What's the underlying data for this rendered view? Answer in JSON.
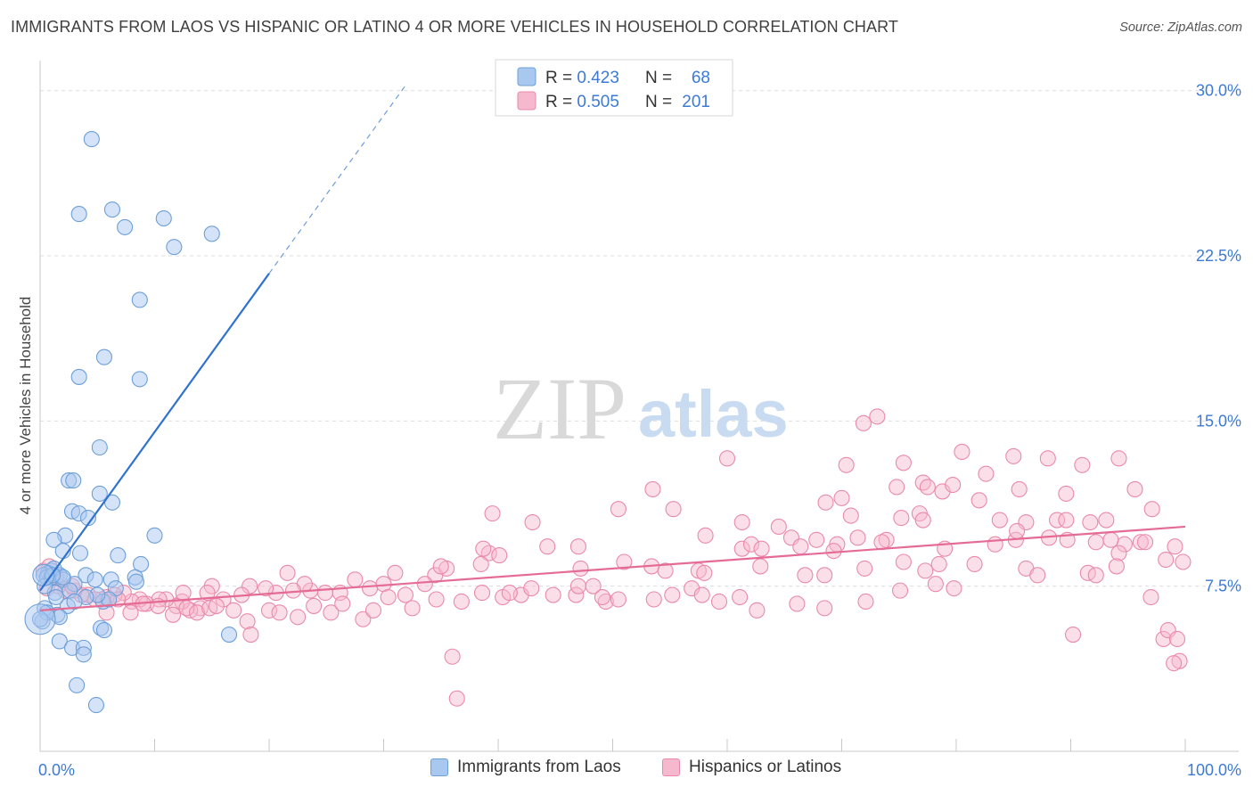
{
  "title": "IMMIGRANTS FROM LAOS VS HISPANIC OR LATINO 4 OR MORE VEHICLES IN HOUSEHOLD CORRELATION CHART",
  "source": "Source: ZipAtlas.com",
  "watermark": {
    "zip": "ZIP",
    "atlas": "atlas"
  },
  "colors": {
    "blue_fill": "#a9c8f0",
    "blue_stroke": "#6d9fd9",
    "blue_line": "#2f72cf",
    "pink_fill": "#f6b8cc",
    "pink_stroke": "#e98aa9",
    "pink_line": "#e56b97",
    "value_text": "#3d7ad6",
    "axis_tick_text": "#3d7ad6",
    "grid": "#dddddd"
  },
  "stats_legend": [
    {
      "r_label": "R = ",
      "r_value": "0.423",
      "n_label": "N = ",
      "n_value": "68"
    },
    {
      "r_label": "R = ",
      "r_value": "0.505",
      "n_label": "N = ",
      "n_value": "201"
    }
  ],
  "chart_data": {
    "type": "scatter",
    "title": "IMMIGRANTS FROM LAOS VS HISPANIC OR LATINO 4 OR MORE VEHICLES IN HOUSEHOLD CORRELATION CHART",
    "xlabel": "",
    "ylabel": "4 or more Vehicles in Household",
    "xlim": [
      0,
      100
    ],
    "ylim": [
      0,
      31
    ],
    "x_tick_labels": [
      "0.0%",
      "100.0%"
    ],
    "y_ticks": [
      7.5,
      15.0,
      22.5,
      30.0
    ],
    "y_tick_labels": [
      "7.5%",
      "15.0%",
      "22.5%",
      "30.0%"
    ],
    "grid": true,
    "legend_position": "bottom",
    "series": [
      {
        "name": "Immigrants from Laos",
        "r": 0.423,
        "n": 68,
        "trend": {
          "x0": 0,
          "y0": 7.3,
          "x1": 20,
          "y1": 21.7,
          "dash_to_x": 32,
          "dash_to_y": 30.3
        },
        "points": [
          [
            4.5,
            27.8
          ],
          [
            3.4,
            24.4
          ],
          [
            6.3,
            24.6
          ],
          [
            10.8,
            24.2
          ],
          [
            7.4,
            23.8
          ],
          [
            15.0,
            23.5
          ],
          [
            11.7,
            22.9
          ],
          [
            8.7,
            20.5
          ],
          [
            5.6,
            17.9
          ],
          [
            3.4,
            17.0
          ],
          [
            8.7,
            16.9
          ],
          [
            5.2,
            13.8
          ],
          [
            2.5,
            12.3
          ],
          [
            2.9,
            12.3
          ],
          [
            5.2,
            11.7
          ],
          [
            6.3,
            11.3
          ],
          [
            2.8,
            10.9
          ],
          [
            3.4,
            10.8
          ],
          [
            4.2,
            10.6
          ],
          [
            2.2,
            9.8
          ],
          [
            1.2,
            9.6
          ],
          [
            10.0,
            9.8
          ],
          [
            2.0,
            9.1
          ],
          [
            3.5,
            9.0
          ],
          [
            6.8,
            8.9
          ],
          [
            8.8,
            8.5
          ],
          [
            1.0,
            8.2
          ],
          [
            0.7,
            8.1
          ],
          [
            0.3,
            8.0
          ],
          [
            0.6,
            7.9
          ],
          [
            1.0,
            7.9
          ],
          [
            1.7,
            8.0
          ],
          [
            4.0,
            8.0
          ],
          [
            4.8,
            7.8
          ],
          [
            6.2,
            7.8
          ],
          [
            2.0,
            7.8
          ],
          [
            3.0,
            7.6
          ],
          [
            8.3,
            7.9
          ],
          [
            8.4,
            7.7
          ],
          [
            6.6,
            7.4
          ],
          [
            1.3,
            7.2
          ],
          [
            2.6,
            7.3
          ],
          [
            5.5,
            6.8
          ],
          [
            6.0,
            6.9
          ],
          [
            2.4,
            6.6
          ],
          [
            1.5,
            6.2
          ],
          [
            1.7,
            6.1
          ],
          [
            0.4,
            6.5
          ],
          [
            0.6,
            6.3
          ],
          [
            0.2,
            5.9
          ],
          [
            5.3,
            5.6
          ],
          [
            5.6,
            5.5
          ],
          [
            16.5,
            5.3
          ],
          [
            1.7,
            5.0
          ],
          [
            2.8,
            4.7
          ],
          [
            3.8,
            4.7
          ],
          [
            3.8,
            4.4
          ],
          [
            3.2,
            3.0
          ],
          [
            4.9,
            2.1
          ],
          [
            0.0,
            6.0
          ],
          [
            1.2,
            8.3
          ],
          [
            0.4,
            7.5
          ],
          [
            1.4,
            7.0
          ],
          [
            2.0,
            7.9
          ],
          [
            5.0,
            7.1
          ],
          [
            4.0,
            7.0
          ],
          [
            1.1,
            8.0
          ],
          [
            3.0,
            6.8
          ]
        ]
      },
      {
        "name": "Hispanics or Latinos",
        "r": 0.505,
        "n": 201,
        "trend": {
          "x0": 0,
          "y0": 6.4,
          "x1": 100,
          "y1": 10.2
        },
        "points": [
          [
            71.9,
            14.9
          ],
          [
            73.1,
            15.2
          ],
          [
            80.5,
            13.6
          ],
          [
            75.4,
            13.1
          ],
          [
            85.0,
            13.4
          ],
          [
            88.0,
            13.3
          ],
          [
            91.0,
            13.0
          ],
          [
            94.2,
            13.3
          ],
          [
            60.0,
            13.3
          ],
          [
            70.4,
            13.0
          ],
          [
            53.5,
            11.9
          ],
          [
            68.6,
            11.3
          ],
          [
            70.0,
            11.5
          ],
          [
            74.8,
            12.0
          ],
          [
            77.1,
            12.2
          ],
          [
            77.5,
            12.0
          ],
          [
            78.8,
            11.8
          ],
          [
            79.7,
            12.1
          ],
          [
            82.6,
            12.6
          ],
          [
            85.5,
            11.9
          ],
          [
            89.6,
            11.7
          ],
          [
            95.6,
            11.9
          ],
          [
            39.5,
            10.8
          ],
          [
            50.5,
            11.0
          ],
          [
            55.3,
            11.0
          ],
          [
            61.3,
            10.4
          ],
          [
            70.8,
            10.7
          ],
          [
            75.2,
            10.6
          ],
          [
            76.8,
            10.8
          ],
          [
            77.1,
            10.5
          ],
          [
            82.0,
            11.4
          ],
          [
            83.8,
            10.5
          ],
          [
            86.1,
            10.4
          ],
          [
            88.8,
            10.5
          ],
          [
            89.6,
            10.5
          ],
          [
            91.7,
            10.4
          ],
          [
            93.1,
            10.5
          ],
          [
            97.1,
            11.0
          ],
          [
            64.5,
            10.2
          ],
          [
            65.6,
            9.7
          ],
          [
            67.8,
            9.6
          ],
          [
            69.6,
            9.4
          ],
          [
            71.4,
            9.7
          ],
          [
            73.9,
            9.6
          ],
          [
            79.0,
            9.2
          ],
          [
            83.4,
            9.4
          ],
          [
            85.2,
            9.6
          ],
          [
            89.7,
            9.6
          ],
          [
            92.2,
            9.5
          ],
          [
            94.7,
            9.4
          ],
          [
            96.1,
            9.5
          ],
          [
            99.1,
            9.3
          ],
          [
            58.1,
            9.8
          ],
          [
            61.3,
            9.2
          ],
          [
            62.1,
            9.4
          ],
          [
            63.0,
            9.2
          ],
          [
            66.4,
            9.3
          ],
          [
            69.3,
            9.1
          ],
          [
            73.5,
            9.5
          ],
          [
            85.3,
            10.0
          ],
          [
            88.1,
            9.7
          ],
          [
            93.5,
            9.6
          ],
          [
            94.2,
            9.0
          ],
          [
            96.5,
            9.5
          ],
          [
            57.5,
            8.2
          ],
          [
            58.0,
            8.1
          ],
          [
            62.9,
            8.4
          ],
          [
            66.8,
            8.0
          ],
          [
            68.5,
            8.0
          ],
          [
            72.0,
            8.3
          ],
          [
            75.4,
            8.6
          ],
          [
            81.6,
            8.5
          ],
          [
            86.1,
            8.3
          ],
          [
            87.1,
            8.0
          ],
          [
            91.5,
            8.1
          ],
          [
            92.2,
            8.0
          ],
          [
            94.0,
            8.4
          ],
          [
            98.3,
            8.7
          ],
          [
            99.8,
            8.6
          ],
          [
            49.4,
            6.8
          ],
          [
            51.0,
            8.6
          ],
          [
            53.4,
            8.4
          ],
          [
            54.6,
            8.2
          ],
          [
            47.2,
            8.3
          ],
          [
            47.0,
            9.3
          ],
          [
            44.3,
            9.3
          ],
          [
            43.0,
            10.4
          ],
          [
            39.2,
            9.0
          ],
          [
            38.7,
            9.2
          ],
          [
            40.1,
            8.9
          ],
          [
            38.5,
            8.5
          ],
          [
            34.5,
            8.0
          ],
          [
            35.5,
            8.3
          ],
          [
            35.0,
            8.4
          ],
          [
            31.0,
            8.1
          ],
          [
            30.0,
            7.6
          ],
          [
            28.8,
            7.4
          ],
          [
            27.5,
            7.8
          ],
          [
            26.2,
            7.2
          ],
          [
            24.9,
            7.2
          ],
          [
            23.6,
            7.3
          ],
          [
            23.1,
            7.6
          ],
          [
            22.1,
            7.3
          ],
          [
            21.6,
            8.1
          ],
          [
            20.6,
            7.2
          ],
          [
            19.7,
            7.4
          ],
          [
            18.3,
            7.5
          ],
          [
            17.6,
            7.1
          ],
          [
            16.0,
            6.9
          ],
          [
            15.0,
            7.5
          ],
          [
            14.6,
            7.2
          ],
          [
            14.0,
            6.5
          ],
          [
            13.1,
            6.4
          ],
          [
            12.4,
            6.8
          ],
          [
            11.9,
            6.6
          ],
          [
            11.0,
            6.9
          ],
          [
            10.4,
            6.9
          ],
          [
            9.3,
            6.7
          ],
          [
            8.7,
            6.9
          ],
          [
            8.0,
            6.8
          ],
          [
            7.3,
            7.2
          ],
          [
            6.5,
            7.1
          ],
          [
            5.8,
            7.0
          ],
          [
            5.4,
            6.9
          ],
          [
            4.2,
            7.1
          ],
          [
            3.6,
            7.1
          ],
          [
            3.0,
            7.3
          ],
          [
            2.2,
            7.3
          ],
          [
            1.6,
            7.5
          ],
          [
            1.0,
            8.0
          ],
          [
            0.6,
            7.4
          ],
          [
            0.3,
            8.2
          ],
          [
            0.8,
            8.4
          ],
          [
            1.4,
            7.9
          ],
          [
            2.8,
            7.5
          ],
          [
            4.8,
            6.9
          ],
          [
            5.8,
            6.3
          ],
          [
            6.8,
            6.9
          ],
          [
            7.9,
            6.3
          ],
          [
            9.0,
            6.7
          ],
          [
            10.3,
            6.6
          ],
          [
            11.6,
            6.2
          ],
          [
            12.8,
            6.5
          ],
          [
            13.7,
            6.3
          ],
          [
            14.8,
            6.5
          ],
          [
            15.4,
            6.6
          ],
          [
            16.9,
            6.4
          ],
          [
            18.1,
            5.9
          ],
          [
            20.0,
            6.4
          ],
          [
            20.9,
            6.3
          ],
          [
            22.5,
            6.1
          ],
          [
            23.9,
            6.6
          ],
          [
            25.4,
            6.3
          ],
          [
            26.4,
            6.7
          ],
          [
            28.2,
            6.0
          ],
          [
            29.1,
            6.4
          ],
          [
            30.4,
            7.0
          ],
          [
            31.9,
            7.1
          ],
          [
            32.5,
            6.5
          ],
          [
            33.6,
            7.6
          ],
          [
            34.6,
            6.9
          ],
          [
            36.8,
            6.8
          ],
          [
            38.6,
            7.2
          ],
          [
            40.4,
            7.0
          ],
          [
            42.0,
            7.1
          ],
          [
            42.9,
            7.4
          ],
          [
            44.8,
            7.1
          ],
          [
            46.8,
            7.1
          ],
          [
            48.3,
            7.5
          ],
          [
            49.1,
            7.0
          ],
          [
            50.5,
            6.9
          ],
          [
            53.6,
            6.9
          ],
          [
            55.2,
            7.1
          ],
          [
            56.9,
            7.4
          ],
          [
            57.8,
            7.1
          ],
          [
            59.3,
            6.8
          ],
          [
            61.1,
            7.0
          ],
          [
            62.6,
            6.4
          ],
          [
            66.1,
            6.7
          ],
          [
            68.5,
            6.5
          ],
          [
            72.1,
            6.8
          ],
          [
            75.1,
            7.3
          ],
          [
            77.3,
            8.2
          ],
          [
            78.5,
            8.5
          ],
          [
            78.2,
            7.6
          ],
          [
            79.8,
            7.4
          ],
          [
            90.2,
            5.3
          ],
          [
            97.0,
            7.0
          ],
          [
            98.1,
            5.1
          ],
          [
            98.5,
            5.5
          ],
          [
            99.3,
            5.1
          ],
          [
            99.5,
            4.1
          ],
          [
            99.0,
            4.0
          ],
          [
            36.0,
            4.3
          ],
          [
            36.4,
            2.4
          ],
          [
            41.0,
            7.2
          ],
          [
            47.0,
            7.5
          ],
          [
            12.5,
            7.2
          ],
          [
            18.4,
            5.3
          ]
        ]
      }
    ]
  },
  "legend_items": [
    {
      "label": "Immigrants from Laos"
    },
    {
      "label": "Hispanics or Latinos"
    }
  ]
}
